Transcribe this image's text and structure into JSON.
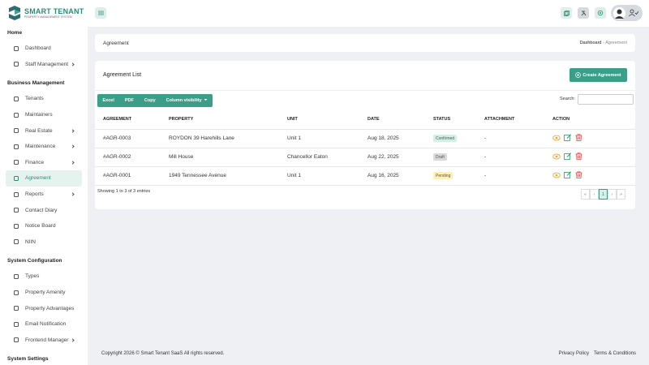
{
  "brand": {
    "name": "SMART TENANT",
    "tagline": "PROPERTY MANAGEMENT SYSTEM"
  },
  "sidebar": [
    {
      "title": "Home",
      "items": [
        {
          "label": "Dashboard",
          "submenu": false,
          "active": false
        },
        {
          "label": "Staff Management",
          "submenu": true,
          "active": false
        }
      ]
    },
    {
      "title": "Business Management",
      "items": [
        {
          "label": "Tenants",
          "submenu": false,
          "active": false
        },
        {
          "label": "Maintainers",
          "submenu": false,
          "active": false
        },
        {
          "label": "Real Estate",
          "submenu": true,
          "active": false
        },
        {
          "label": "Maintenance",
          "submenu": true,
          "active": false
        },
        {
          "label": "Finance",
          "submenu": true,
          "active": false
        },
        {
          "label": "Agreement",
          "submenu": false,
          "active": true
        },
        {
          "label": "Reports",
          "submenu": true,
          "active": false
        },
        {
          "label": "Contact Diary",
          "submenu": false,
          "active": false
        },
        {
          "label": "Notice Board",
          "submenu": false,
          "active": false
        },
        {
          "label": "NIIN",
          "submenu": false,
          "active": false
        }
      ]
    },
    {
      "title": "System Configuration",
      "items": [
        {
          "label": "Types",
          "submenu": false,
          "active": false
        },
        {
          "label": "Property Amenity",
          "submenu": false,
          "active": false
        },
        {
          "label": "Property Advantages",
          "submenu": false,
          "active": false
        },
        {
          "label": "Email Notification",
          "submenu": false,
          "active": false
        },
        {
          "label": "Frontend Manager",
          "submenu": true,
          "active": false
        }
      ]
    },
    {
      "title": "System Settings",
      "items": []
    }
  ],
  "breadcrumb": {
    "page": "Agreement",
    "home": "Dashboard",
    "current": "Agreement"
  },
  "card": {
    "title": "Agreement List",
    "create": "Create Agreement",
    "buttons": [
      "Excel",
      "PDF",
      "Copy",
      "Column visibility"
    ],
    "search": "Search:",
    "headers": [
      "AGREEMENT",
      "PROPERTY",
      "UNIT",
      "DATE",
      "STATUS",
      "ATTACHMENT",
      "ACTION"
    ],
    "rows": [
      {
        "agreement": "#AGR-0003",
        "property": "ROYDON 39 Harehills Lane",
        "unit": "Unit 1",
        "date": "Aug 18, 2025",
        "status": {
          "label": "Confirmed",
          "color": "#d4efe6"
        },
        "attachment": "-"
      },
      {
        "agreement": "#AGR-0002",
        "property": "Mill House",
        "unit": "Chancellor Eaton",
        "date": "Aug 22, 2025",
        "status": {
          "label": "Draft",
          "color": "#d9d9d9"
        },
        "attachment": "-"
      },
      {
        "agreement": "#AGR-0001",
        "property": "1949 Tennessee Avenue",
        "unit": "Unit 1",
        "date": "Aug 16, 2025",
        "status": {
          "label": "Pending",
          "color": "#fff0b8"
        },
        "attachment": "-"
      }
    ],
    "info": "Showing 1 to 3 of 3 entries",
    "pagination": [
      "«",
      "‹",
      "1",
      "›",
      "»"
    ]
  },
  "footer": {
    "copyright": "Copyright 2026 © Smart Tenant SaaS All rights reserved.",
    "links": [
      "Privacy Policy",
      "Terms & Conditions"
    ]
  }
}
